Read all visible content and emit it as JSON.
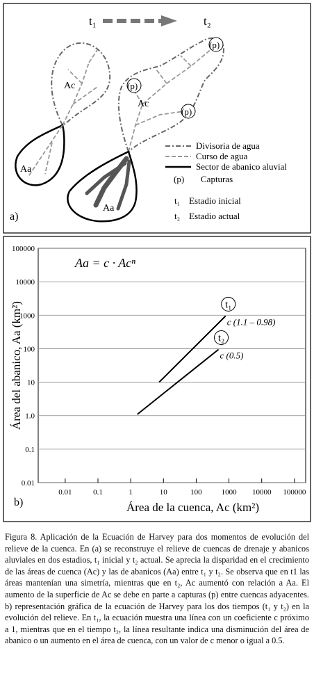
{
  "panel_a": {
    "arrow_start": "t₁",
    "arrow_end": "t₂",
    "left_basin": {
      "catchment": "Ac",
      "fan": "Aa"
    },
    "right_basin": {
      "catchment": "Ac",
      "fan": "Aa",
      "captures": [
        "(p)",
        "(p)",
        "(p)"
      ]
    },
    "legend": [
      {
        "label": "Divisoria de agua"
      },
      {
        "label": "Curso de agua"
      },
      {
        "label": "Sector de abanico aluvial"
      },
      {
        "symbol": "(p)",
        "label": "Capturas"
      },
      {
        "symbol": "t₁",
        "label": "Estadio inicial"
      },
      {
        "symbol": "t₂",
        "label": "Estadio actual"
      }
    ],
    "panel_label": "a)"
  },
  "chart_data": {
    "type": "line",
    "formula": "Aa = c · Acⁿ",
    "x_label": "Área de la cuenca, Ac (km²)",
    "y_label": "Área del abanico, Aa (km²)",
    "panel_label": "b)",
    "log_x": true,
    "log_y": true,
    "grid": true,
    "xlim": [
      0.0015,
      220000
    ],
    "ylim": [
      0.01,
      100000
    ],
    "xticks": [
      0.01,
      0.1,
      1,
      10,
      100,
      1000,
      10000,
      100000
    ],
    "yticks": [
      0.01,
      0.1,
      {
        "value": 1,
        "label": "1.0"
      },
      10,
      100,
      1000,
      10000,
      100000
    ],
    "series": [
      {
        "name": "t₁",
        "annotation": "c (1.1 – 0.98)",
        "color": "#000000",
        "x": [
          7.4,
          790
        ],
        "values": [
          10,
          950
        ]
      },
      {
        "name": "t₂",
        "annotation": "c (0.5)",
        "color": "#000000",
        "x": [
          1.6,
          480
        ],
        "values": [
          1.1,
          95
        ]
      }
    ]
  },
  "caption": "Figura 8. Aplicación de la Ecuación de Harvey para dos momentos de evolución del relieve de la cuenca. En (a) se reconstruye el relieve de cuencas de drenaje y abanicos aluviales en dos estadios, t₁ inicial y t₂ actual. Se aprecia la disparidad en el crecimiento de las áreas de cuenca (Ac) y las de abanicos (Aa) entre t₁ y t₂. Se observa que en t1 las áreas mantenían una simetría, mientras que en t₂, Ac aumentó con relación a Aa. El aumento de la superficie de Ac se debe en parte a capturas (p) entre cuencas adyacentes. b) representación gráfica de la ecuación de Harvey para los dos tiempos (t₁ y t₂) en la evolución del relieve. En t₁, la ecuación muestra una línea con un coeficiente c próximo a 1, mientras que en el tiempo t₂, la línea resultante indica una disminución del área de abanico o un aumento en el área de cuenca, con un valor de c menor o igual a 0.5."
}
